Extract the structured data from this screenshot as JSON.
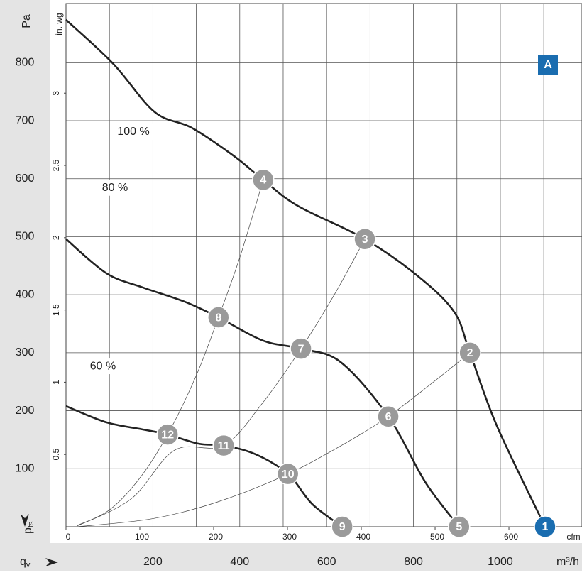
{
  "chart_data": {
    "type": "line",
    "y_label": "Pa",
    "y2_label": "in. wg",
    "x_label": "m³/h",
    "x2_label": "cfm",
    "x_axis_symbol": "q",
    "x_axis_symbol_sub": "v",
    "y_axis_symbol": "p",
    "y_axis_symbol_sub": "fs",
    "badge": "A",
    "xlim": [
      0,
      1188
    ],
    "xticks": [
      200,
      400,
      600,
      800,
      1000
    ],
    "x2lim": [
      0,
      699
    ],
    "x2ticks": [
      0,
      100,
      200,
      300,
      400,
      500,
      600
    ],
    "ylim": [
      0,
      902
    ],
    "yticks": [
      100,
      200,
      300,
      400,
      500,
      600,
      700,
      800
    ],
    "y2lim": [
      0,
      3.62
    ],
    "y2ticks": [
      0.5,
      1,
      1.5,
      2,
      2.5,
      3
    ],
    "x_grid": [
      100,
      200,
      300,
      400,
      500,
      600,
      700,
      800,
      900,
      1000,
      1100
    ],
    "grid": true,
    "series": [
      {
        "name": "100 %",
        "color": "#222",
        "x": [
          0,
          109,
          204,
          289,
          387,
          454,
          534,
          688,
          812,
          894,
          930,
          992,
          1103
        ],
        "values": [
          874,
          798,
          715,
          688,
          639,
          598,
          553,
          496,
          431,
          370,
          300,
          174,
          0
        ]
      },
      {
        "name": "80 %",
        "color": "#222",
        "x": [
          0,
          93,
          175,
          273,
          351,
          453,
          541,
          632,
          742,
          828,
          905
        ],
        "values": [
          496,
          437,
          413,
          388,
          361,
          321,
          307,
          284,
          190,
          76,
          0
        ]
      },
      {
        "name": "60 %",
        "color": "#222",
        "x": [
          0,
          93,
          175,
          234,
          306,
          363,
          436,
          511,
          567,
          636
        ],
        "values": [
          208,
          180,
          168,
          159,
          143,
          140,
          125,
          91,
          39,
          0
        ]
      }
    ],
    "system_curves": [
      {
        "x": [
          25,
          100,
          170,
          234,
          300,
          351,
          400,
          454
        ],
        "values": [
          2,
          29,
          84,
          159,
          261,
          361,
          464,
          598
        ]
      },
      {
        "x": [
          25,
          150,
          250,
          363,
          450,
          541,
          620,
          688
        ],
        "values": [
          1,
          48,
          132,
          140,
          211,
          307,
          403,
          496
        ]
      },
      {
        "x": [
          25,
          200,
          350,
          511,
          650,
          742,
          840,
          930
        ],
        "values": [
          0,
          14,
          43,
          91,
          147,
          190,
          246,
          300
        ]
      }
    ],
    "points": [
      {
        "label": "1",
        "x": 1103,
        "y": 0,
        "color": "#1a6db0"
      },
      {
        "label": "2",
        "x": 930,
        "y": 300,
        "color": "#9a9a9a"
      },
      {
        "label": "3",
        "x": 688,
        "y": 496,
        "color": "#9a9a9a"
      },
      {
        "label": "4",
        "x": 454,
        "y": 598,
        "color": "#9a9a9a"
      },
      {
        "label": "5",
        "x": 905,
        "y": 0,
        "color": "#9a9a9a"
      },
      {
        "label": "6",
        "x": 742,
        "y": 190,
        "color": "#9a9a9a"
      },
      {
        "label": "7",
        "x": 541,
        "y": 307,
        "color": "#9a9a9a"
      },
      {
        "label": "8",
        "x": 351,
        "y": 361,
        "color": "#9a9a9a"
      },
      {
        "label": "9",
        "x": 636,
        "y": 0,
        "color": "#9a9a9a"
      },
      {
        "label": "10",
        "x": 511,
        "y": 91,
        "color": "#9a9a9a"
      },
      {
        "label": "11",
        "x": 363,
        "y": 140,
        "color": "#9a9a9a"
      },
      {
        "label": "12",
        "x": 234,
        "y": 159,
        "color": "#9a9a9a"
      }
    ]
  }
}
